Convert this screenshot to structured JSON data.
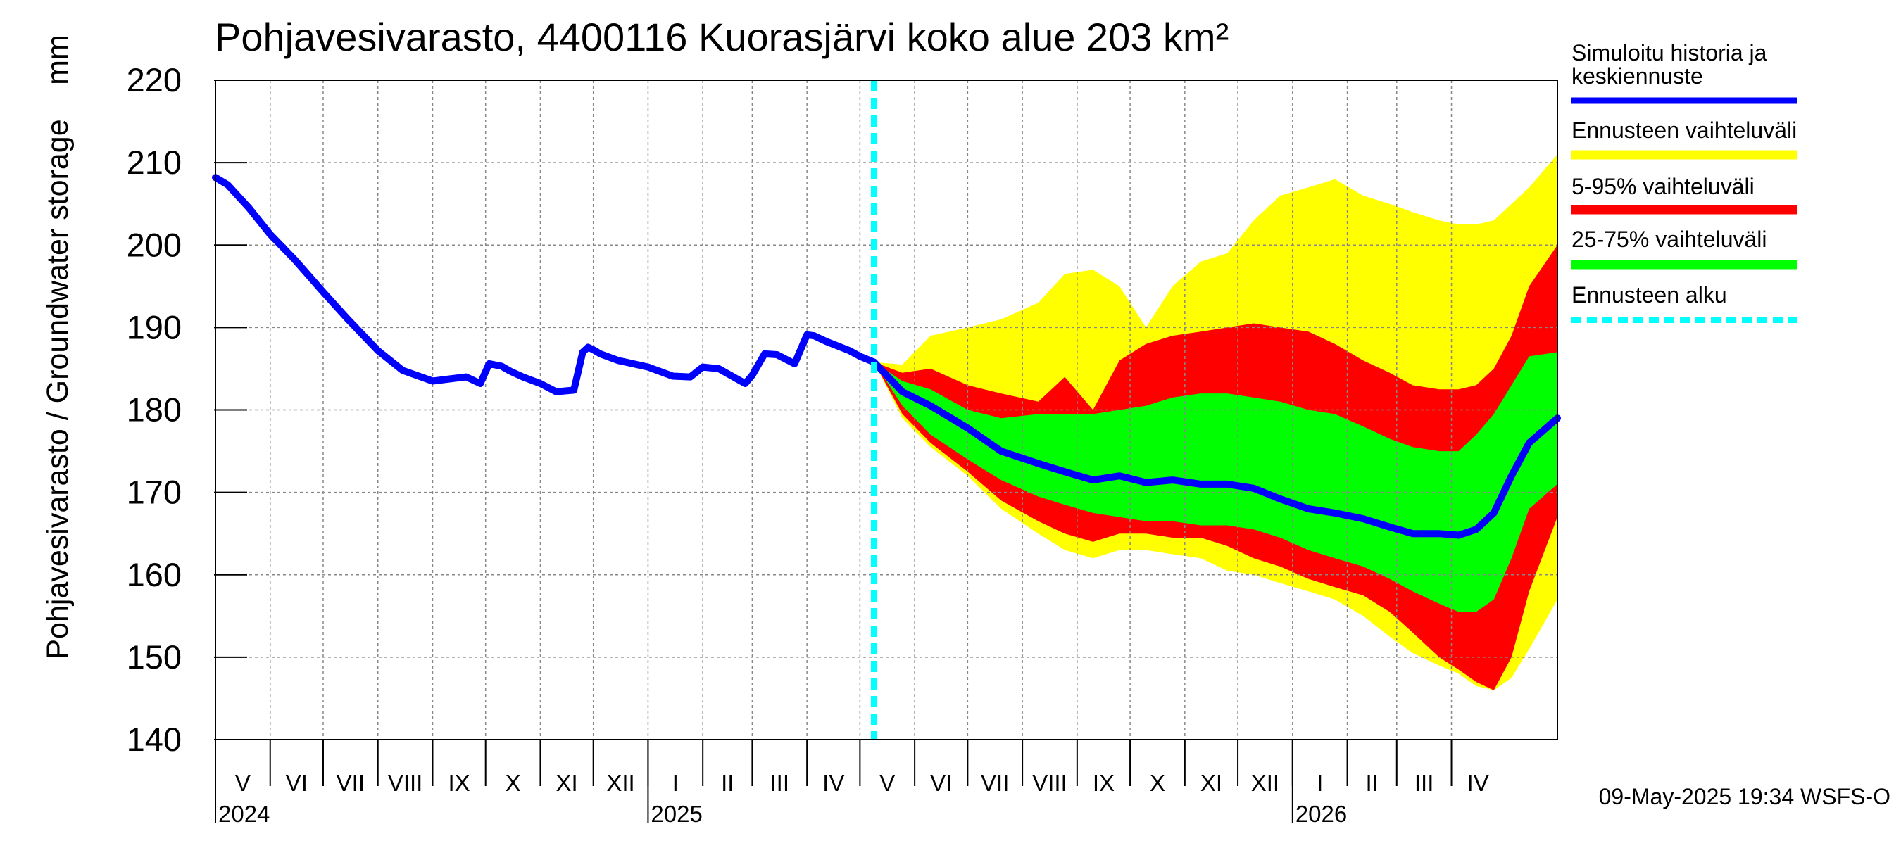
{
  "chart_data": {
    "type": "area",
    "title": "Pohjavesivarasto, 4400116 Kuorasjärvi koko alue 203 km²",
    "ylabel": "Pohjavesivarasto / Groundwater storage",
    "yunit": "mm",
    "ylim": [
      140,
      220
    ],
    "yticks": [
      "140",
      "150",
      "160",
      "170",
      "180",
      "190",
      "200",
      "210",
      "220"
    ],
    "xlim": [
      "2024-05-01",
      "2026-05-31"
    ],
    "grid": true,
    "legend_position": "right",
    "months": [
      {
        "label": "V",
        "start": "2024-05-01",
        "end": "2024-06-01"
      },
      {
        "label": "VI",
        "start": "2024-06-01",
        "end": "2024-07-01"
      },
      {
        "label": "VII",
        "start": "2024-07-01",
        "end": "2024-08-01"
      },
      {
        "label": "VIII",
        "start": "2024-08-01",
        "end": "2024-09-01"
      },
      {
        "label": "IX",
        "start": "2024-09-01",
        "end": "2024-10-01"
      },
      {
        "label": "X",
        "start": "2024-10-01",
        "end": "2024-11-01"
      },
      {
        "label": "XI",
        "start": "2024-11-01",
        "end": "2024-12-01"
      },
      {
        "label": "XII",
        "start": "2024-12-01",
        "end": "2025-01-01"
      },
      {
        "label": "I",
        "start": "2025-01-01",
        "end": "2025-02-01"
      },
      {
        "label": "II",
        "start": "2025-02-01",
        "end": "2025-03-01"
      },
      {
        "label": "III",
        "start": "2025-03-01",
        "end": "2025-04-01"
      },
      {
        "label": "IV",
        "start": "2025-04-01",
        "end": "2025-05-01"
      },
      {
        "label": "V",
        "start": "2025-05-01",
        "end": "2025-06-01"
      },
      {
        "label": "VI",
        "start": "2025-06-01",
        "end": "2025-07-01"
      },
      {
        "label": "VII",
        "start": "2025-07-01",
        "end": "2025-08-01"
      },
      {
        "label": "VIII",
        "start": "2025-08-01",
        "end": "2025-09-01"
      },
      {
        "label": "IX",
        "start": "2025-09-01",
        "end": "2025-10-01"
      },
      {
        "label": "X",
        "start": "2025-10-01",
        "end": "2025-11-01"
      },
      {
        "label": "XI",
        "start": "2025-11-01",
        "end": "2025-12-01"
      },
      {
        "label": "XII",
        "start": "2025-12-01",
        "end": "2026-01-01"
      },
      {
        "label": "I",
        "start": "2026-01-01",
        "end": "2026-02-01"
      },
      {
        "label": "II",
        "start": "2026-02-01",
        "end": "2026-03-01"
      },
      {
        "label": "III",
        "start": "2026-03-01",
        "end": "2026-04-01"
      },
      {
        "label": "IV",
        "start": "2026-04-01",
        "end": "2026-05-01"
      }
    ],
    "years": [
      {
        "label": "2024",
        "date": "2024-05-01"
      },
      {
        "label": "2025",
        "date": "2025-01-01"
      },
      {
        "label": "2026",
        "date": "2026-01-01"
      }
    ],
    "forecast_start": "2025-05-09",
    "history": {
      "name": "Simuloitu historia ja keskiennuste",
      "color": "#0000ff",
      "x": [
        "2024-05-01",
        "2024-05-08",
        "2024-05-20",
        "2024-06-01",
        "2024-06-15",
        "2024-07-01",
        "2024-07-15",
        "2024-08-01",
        "2024-08-15",
        "2024-09-01",
        "2024-09-20",
        "2024-09-28",
        "2024-10-03",
        "2024-10-10",
        "2024-10-15",
        "2024-10-22",
        "2024-11-01",
        "2024-11-10",
        "2024-11-20",
        "2024-11-25",
        "2024-11-28",
        "2024-12-01",
        "2024-12-05",
        "2024-12-15",
        "2025-01-01",
        "2025-01-15",
        "2025-01-25",
        "2025-02-01",
        "2025-02-10",
        "2025-02-25",
        "2025-03-01",
        "2025-03-08",
        "2025-03-15",
        "2025-03-25",
        "2025-04-01",
        "2025-04-05",
        "2025-04-12",
        "2025-04-25",
        "2025-05-01",
        "2025-05-09"
      ],
      "y": [
        208.2,
        207.3,
        204.5,
        201.3,
        198.2,
        194.3,
        191.0,
        187.2,
        184.8,
        183.5,
        184.0,
        183.2,
        185.6,
        185.3,
        184.7,
        184.0,
        183.2,
        182.2,
        182.4,
        187.0,
        187.6,
        187.3,
        186.8,
        186.0,
        185.2,
        184.1,
        184.0,
        185.2,
        185.0,
        183.2,
        184.2,
        186.8,
        186.7,
        185.6,
        189.1,
        189.0,
        188.3,
        187.2,
        186.5,
        185.8
      ]
    },
    "forecast": {
      "x": [
        "2025-05-09",
        "2025-05-25",
        "2025-06-10",
        "2025-07-01",
        "2025-07-20",
        "2025-08-10",
        "2025-08-25",
        "2025-09-10",
        "2025-09-25",
        "2025-10-10",
        "2025-10-25",
        "2025-11-10",
        "2025-11-25",
        "2025-12-10",
        "2025-12-25",
        "2026-01-10",
        "2026-01-25",
        "2026-02-10",
        "2026-02-25",
        "2026-03-10",
        "2026-03-25",
        "2026-04-05",
        "2026-04-15",
        "2026-04-25",
        "2026-05-05",
        "2026-05-15",
        "2026-05-31"
      ],
      "median": [
        185.8,
        182.2,
        180.5,
        177.8,
        175.0,
        173.5,
        172.5,
        171.5,
        172.0,
        171.2,
        171.5,
        171.0,
        171.0,
        170.5,
        169.2,
        168.0,
        167.5,
        166.8,
        165.8,
        165.0,
        165.0,
        164.8,
        165.5,
        167.5,
        172.0,
        176.0,
        179.0
      ],
      "p25": [
        185.8,
        180.5,
        177.0,
        174.0,
        171.5,
        169.5,
        168.5,
        167.5,
        167.0,
        166.5,
        166.5,
        166.0,
        166.0,
        165.5,
        164.5,
        163.0,
        162.0,
        161.0,
        159.5,
        158.0,
        156.5,
        155.5,
        155.5,
        157.0,
        162.0,
        168.0,
        171.0
      ],
      "p75": [
        185.8,
        183.5,
        182.5,
        180.0,
        179.0,
        179.5,
        179.5,
        179.5,
        180.0,
        180.5,
        181.5,
        182.0,
        182.0,
        181.5,
        181.0,
        180.0,
        179.5,
        178.0,
        176.5,
        175.5,
        175.0,
        175.0,
        177.0,
        179.5,
        183.0,
        186.5,
        187.0
      ],
      "p5": [
        185.8,
        179.5,
        176.0,
        172.5,
        169.0,
        166.5,
        165.0,
        164.0,
        165.0,
        165.0,
        164.5,
        164.5,
        163.5,
        162.0,
        161.0,
        159.5,
        158.5,
        157.5,
        155.5,
        153.0,
        150.0,
        148.5,
        147.0,
        146.0,
        150.0,
        158.0,
        167.0
      ],
      "p95": [
        185.8,
        184.5,
        185.0,
        183.0,
        182.0,
        181.0,
        184.0,
        180.0,
        186.0,
        188.0,
        189.0,
        189.5,
        190.0,
        190.5,
        190.0,
        189.5,
        188.0,
        186.0,
        184.5,
        183.0,
        182.5,
        182.5,
        183.0,
        185.0,
        189.0,
        195.0,
        200.0
      ],
      "min": [
        185.8,
        179.0,
        175.5,
        172.0,
        168.0,
        165.0,
        163.0,
        162.0,
        163.0,
        163.0,
        162.5,
        162.0,
        160.5,
        160.0,
        159.0,
        158.0,
        157.0,
        155.0,
        152.5,
        150.5,
        149.0,
        148.0,
        146.5,
        146.0,
        147.5,
        151.0,
        157.0
      ],
      "max": [
        185.8,
        185.5,
        189.0,
        190.0,
        191.0,
        193.0,
        196.5,
        197.0,
        195.0,
        190.0,
        195.0,
        198.0,
        199.0,
        203.0,
        206.0,
        207.0,
        208.0,
        206.0,
        205.0,
        204.0,
        203.0,
        202.5,
        202.5,
        203.0,
        205.0,
        207.0,
        211.0
      ]
    },
    "legend": [
      {
        "key": "median",
        "label": "Simuloitu historia ja keskiennuste",
        "color": "#0000ff",
        "style": "line"
      },
      {
        "key": "range",
        "label": "Ennusteen vaihteluväli",
        "color": "#ffff00",
        "style": "band"
      },
      {
        "key": "p5_95",
        "label": "5-95% vaihteluväli",
        "color": "#ff0000",
        "style": "band"
      },
      {
        "key": "p25_75",
        "label": "25-75% vaihteluväli",
        "color": "#00ff00",
        "style": "band"
      },
      {
        "key": "start",
        "label": "Ennusteen alku",
        "color": "#00ffff",
        "style": "dashed"
      }
    ],
    "footer": "09-May-2025 19:34 WSFS-O"
  }
}
